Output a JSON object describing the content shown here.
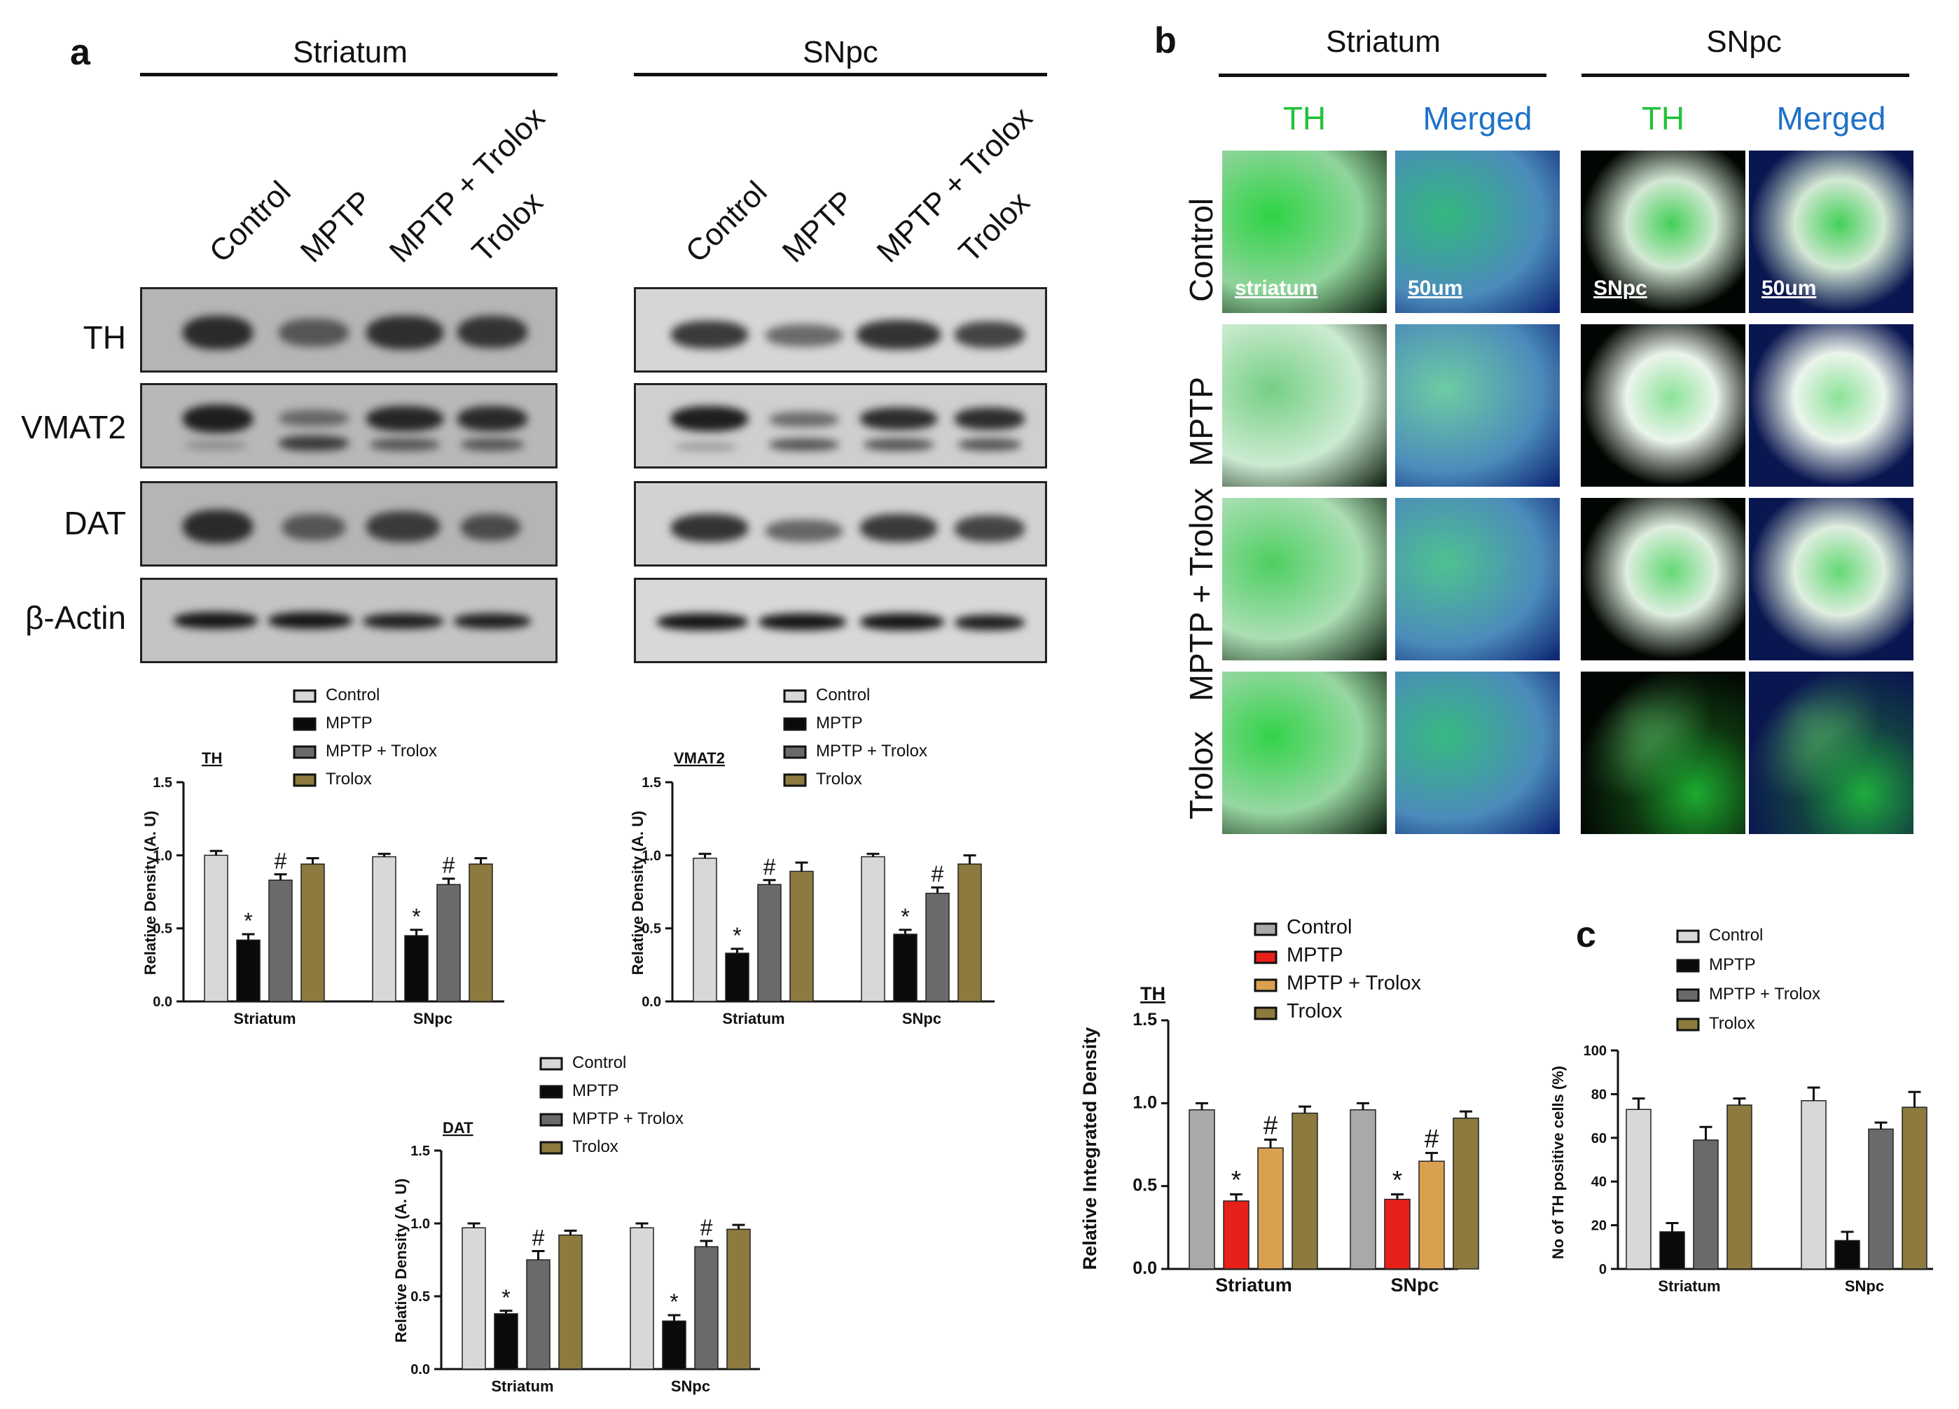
{
  "panel_a": {
    "label": "a",
    "groups": [
      {
        "title": "Striatum"
      },
      {
        "title": "SNpc"
      }
    ],
    "lanes": [
      "Control",
      "MPTP",
      "MPTP + Trolox",
      "Trolox"
    ],
    "proteins": [
      "TH",
      "VMAT2",
      "DAT",
      "β-Actin"
    ]
  },
  "panel_b": {
    "label": "b",
    "groups": [
      {
        "title": "Striatum"
      },
      {
        "title": "SNpc"
      }
    ],
    "channels": [
      "TH",
      "Merged",
      "TH",
      "Merged"
    ],
    "rows": [
      "Control",
      "MPTP",
      "MPTP + Trolox",
      "Trolox"
    ],
    "scalebars": [
      "striatum",
      "50um",
      "SNpc",
      "50um"
    ]
  },
  "panel_c": {
    "label": "c"
  },
  "colors": {
    "control": "#d8d8d8",
    "mptp": "#0a0a0a",
    "mptp_trolox": "#6a6a6a",
    "trolox": "#8c7a3e",
    "b_control": "#a9a9a9",
    "b_mptp": "#e8201a",
    "b_mptp_trolox": "#d9a050",
    "b_trolox": "#8c7a3e",
    "th_green": "#22c23a",
    "merged_blue": "#1e72c8"
  },
  "chart_data": [
    {
      "id": "a_th",
      "type": "bar",
      "title": "TH",
      "ylabel": "Relative Density (A. U)",
      "ylim": [
        0,
        1.5
      ],
      "yticks": [
        "0.0",
        "0.5",
        "1.0",
        "1.5"
      ],
      "categories": [
        "Striatum",
        "SNpc"
      ],
      "legend": [
        "Control",
        "MPTP",
        "MPTP + Trolox",
        "Trolox"
      ],
      "series": [
        {
          "name": "Control",
          "values": [
            1.0,
            0.99
          ],
          "err": [
            0.03,
            0.02
          ]
        },
        {
          "name": "MPTP",
          "values": [
            0.42,
            0.45
          ],
          "err": [
            0.04,
            0.04
          ],
          "marks": [
            "*",
            "*"
          ]
        },
        {
          "name": "MPTP + Trolox",
          "values": [
            0.83,
            0.8
          ],
          "err": [
            0.04,
            0.04
          ],
          "marks": [
            "#",
            "#"
          ]
        },
        {
          "name": "Trolox",
          "values": [
            0.94,
            0.94
          ],
          "err": [
            0.04,
            0.04
          ]
        }
      ]
    },
    {
      "id": "a_vmat2",
      "type": "bar",
      "title": "VMAT2",
      "ylabel": "Relative Density (A. U)",
      "ylim": [
        0,
        1.5
      ],
      "yticks": [
        "0.0",
        "0.5",
        "1.0",
        "1.5"
      ],
      "categories": [
        "Striatum",
        "SNpc"
      ],
      "legend": [
        "Control",
        "MPTP",
        "MPTP + Trolox",
        "Trolox"
      ],
      "series": [
        {
          "name": "Control",
          "values": [
            0.98,
            0.99
          ],
          "err": [
            0.03,
            0.02
          ]
        },
        {
          "name": "MPTP",
          "values": [
            0.33,
            0.46
          ],
          "err": [
            0.03,
            0.03
          ],
          "marks": [
            "*",
            "*"
          ]
        },
        {
          "name": "MPTP + Trolox",
          "values": [
            0.8,
            0.74
          ],
          "err": [
            0.03,
            0.04
          ],
          "marks": [
            "#",
            "#"
          ]
        },
        {
          "name": "Trolox",
          "values": [
            0.89,
            0.94
          ],
          "err": [
            0.06,
            0.06
          ]
        }
      ]
    },
    {
      "id": "a_dat",
      "type": "bar",
      "title": "DAT",
      "ylabel": "Relative Density (A. U)",
      "ylim": [
        0,
        1.5
      ],
      "yticks": [
        "0.0",
        "0.5",
        "1.0",
        "1.5"
      ],
      "categories": [
        "Striatum",
        "SNpc"
      ],
      "legend": [
        "Control",
        "MPTP",
        "MPTP + Trolox",
        "Trolox"
      ],
      "series": [
        {
          "name": "Control",
          "values": [
            0.97,
            0.97
          ],
          "err": [
            0.03,
            0.03
          ]
        },
        {
          "name": "MPTP",
          "values": [
            0.38,
            0.33
          ],
          "err": [
            0.02,
            0.04
          ],
          "marks": [
            "*",
            "*"
          ]
        },
        {
          "name": "MPTP + Trolox",
          "values": [
            0.75,
            0.84
          ],
          "err": [
            0.06,
            0.04
          ],
          "marks": [
            "#",
            "#"
          ]
        },
        {
          "name": "Trolox",
          "values": [
            0.92,
            0.96
          ],
          "err": [
            0.03,
            0.03
          ]
        }
      ]
    },
    {
      "id": "b_th",
      "type": "bar",
      "title": "TH",
      "ylabel": "Relative Integrated Density",
      "ylim": [
        0,
        1.5
      ],
      "yticks": [
        "0.0",
        "0.5",
        "1.0",
        "1.5"
      ],
      "categories": [
        "Striatum",
        "SNpc"
      ],
      "legend": [
        "Control",
        "MPTP",
        "MPTP + Trolox",
        "Trolox"
      ],
      "series": [
        {
          "name": "Control",
          "values": [
            0.96,
            0.96
          ],
          "err": [
            0.04,
            0.04
          ]
        },
        {
          "name": "MPTP",
          "values": [
            0.41,
            0.42
          ],
          "err": [
            0.04,
            0.03
          ],
          "marks": [
            "*",
            "*"
          ]
        },
        {
          "name": "MPTP + Trolox",
          "values": [
            0.73,
            0.65
          ],
          "err": [
            0.05,
            0.05
          ],
          "marks": [
            "#",
            "#"
          ]
        },
        {
          "name": "Trolox",
          "values": [
            0.94,
            0.91
          ],
          "err": [
            0.04,
            0.04
          ]
        }
      ]
    },
    {
      "id": "c_cells",
      "type": "bar",
      "ylabel": "No of TH positive cells (%)",
      "ylim": [
        0,
        100
      ],
      "yticks": [
        "0",
        "20",
        "40",
        "60",
        "80",
        "100"
      ],
      "categories": [
        "Striatum",
        "SNpc"
      ],
      "legend": [
        "Control",
        "MPTP",
        "MPTP + Trolox",
        "Trolox"
      ],
      "series": [
        {
          "name": "Control",
          "values": [
            73,
            77
          ],
          "err": [
            5,
            6
          ]
        },
        {
          "name": "MPTP",
          "values": [
            17,
            13
          ],
          "err": [
            4,
            4
          ]
        },
        {
          "name": "MPTP + Trolox",
          "values": [
            59,
            64
          ],
          "err": [
            6,
            3
          ]
        },
        {
          "name": "Trolox",
          "values": [
            75,
            74
          ],
          "err": [
            3,
            7
          ]
        }
      ]
    }
  ]
}
